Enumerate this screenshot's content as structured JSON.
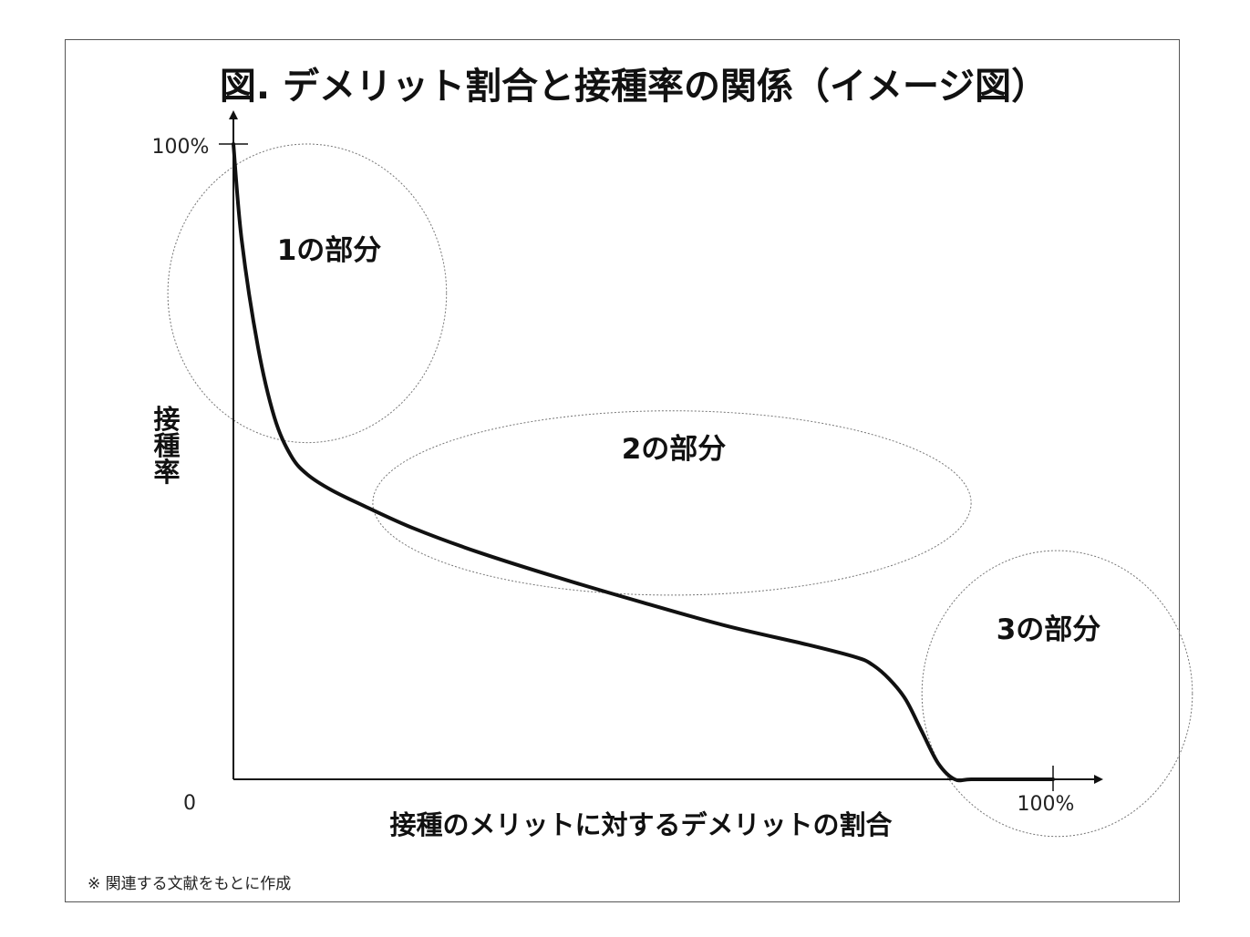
{
  "chart_data": {
    "type": "line",
    "title": "図. デメリット割合と接種率の関係（イメージ図）",
    "xlabel": "接種のメリットに対するデメリットの割合",
    "ylabel": "接種率",
    "xlim": [
      0,
      100
    ],
    "ylim": [
      0,
      100
    ],
    "origin_label": "0",
    "y_max_label": "100%",
    "x_max_label": "100%",
    "series": [
      {
        "x": [
          0,
          1,
          3,
          5,
          7,
          9,
          12,
          16,
          22,
          30,
          40,
          50,
          60,
          70,
          76,
          78,
          80,
          82,
          84,
          86,
          88,
          90,
          95,
          100
        ],
        "y": [
          100,
          85,
          68,
          57,
          51,
          48,
          45.5,
          43,
          39.5,
          35.7,
          31.6,
          27.8,
          24.2,
          21.2,
          19.2,
          18,
          15.8,
          12.6,
          7.5,
          2.5,
          0,
          0,
          0,
          0
        ]
      }
    ],
    "regions": [
      {
        "label": "1の部分",
        "x_range": [
          -8,
          26
        ],
        "y_range": [
          53,
          100
        ]
      },
      {
        "label": "2の部分",
        "x_range": [
          17,
          90
        ],
        "y_range": [
          29,
          58
        ]
      },
      {
        "label": "3の部分",
        "x_range": [
          84,
          117
        ],
        "y_range": [
          -9,
          36
        ]
      }
    ],
    "note": "※ 関連する文献をもとに作成"
  }
}
